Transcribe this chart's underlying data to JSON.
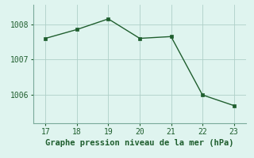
{
  "x": [
    17,
    18,
    19,
    20,
    21,
    22,
    23
  ],
  "y": [
    1007.6,
    1007.85,
    1008.15,
    1007.6,
    1007.65,
    1006.0,
    1005.7
  ],
  "line_color": "#1f5e2e",
  "marker_color": "#1f5e2e",
  "bg_color": "#dff4ef",
  "grid_color": "#aecfc8",
  "xlabel": "Graphe pression niveau de la mer (hPa)",
  "xlabel_color": "#1f5e2e",
  "tick_color": "#1f5e2e",
  "spine_color": "#7aaa9a",
  "ylim": [
    1005.2,
    1008.55
  ],
  "xlim": [
    16.6,
    23.4
  ],
  "yticks": [
    1006,
    1007,
    1008
  ],
  "xticks": [
    17,
    18,
    19,
    20,
    21,
    22,
    23
  ],
  "xlabel_fontsize": 7.5,
  "tick_fontsize": 7.0
}
